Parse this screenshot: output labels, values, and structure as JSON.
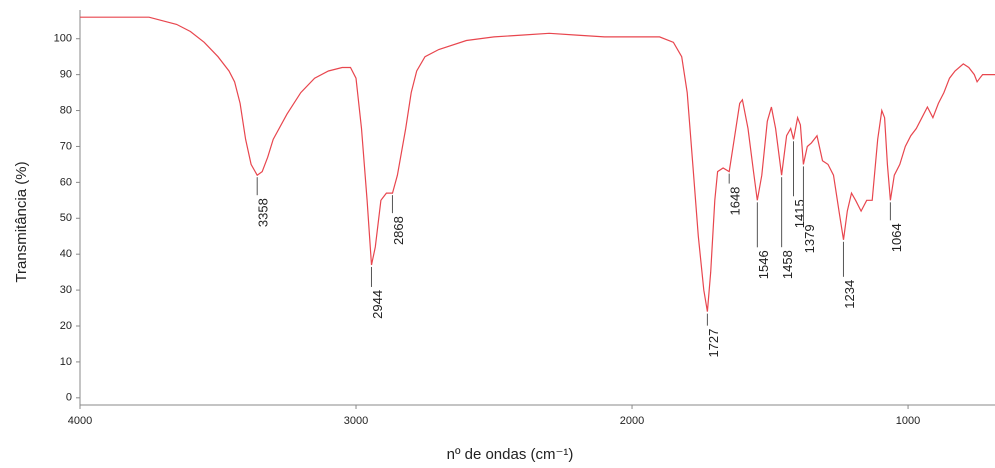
{
  "chart_data": {
    "type": "line",
    "x_label": "nº de ondas (cm⁻¹)",
    "y_label": "Transmitância (%)",
    "color": "#e8464e",
    "xlim": [
      4000,
      685
    ],
    "ylim": [
      -2,
      108
    ],
    "xticks": [
      4000,
      3000,
      2000,
      1000
    ],
    "yticks": [
      0,
      10,
      20,
      30,
      40,
      50,
      60,
      70,
      80,
      90,
      100
    ],
    "x": [
      4000,
      3800,
      3750,
      3700,
      3650,
      3600,
      3550,
      3500,
      3460,
      3440,
      3420,
      3400,
      3380,
      3358,
      3340,
      3320,
      3300,
      3250,
      3200,
      3150,
      3100,
      3050,
      3020,
      3000,
      2980,
      2960,
      2944,
      2930,
      2910,
      2890,
      2868,
      2850,
      2820,
      2800,
      2780,
      2750,
      2700,
      2600,
      2500,
      2400,
      2300,
      2200,
      2100,
      2000,
      1900,
      1850,
      1820,
      1800,
      1780,
      1760,
      1740,
      1727,
      1715,
      1700,
      1690,
      1670,
      1648,
      1630,
      1610,
      1600,
      1580,
      1560,
      1546,
      1530,
      1510,
      1495,
      1480,
      1458,
      1440,
      1425,
      1415,
      1400,
      1390,
      1379,
      1365,
      1350,
      1330,
      1310,
      1290,
      1270,
      1250,
      1234,
      1220,
      1205,
      1190,
      1170,
      1150,
      1130,
      1110,
      1095,
      1085,
      1075,
      1064,
      1050,
      1030,
      1010,
      990,
      970,
      950,
      930,
      910,
      890,
      870,
      850,
      830,
      800,
      780,
      760,
      750,
      740,
      730,
      700,
      685
    ],
    "values": [
      106,
      106,
      106,
      105,
      104,
      102,
      99,
      95,
      91,
      88,
      82,
      72,
      65,
      62,
      63,
      67,
      72,
      79,
      85,
      89,
      91,
      92,
      92,
      89,
      75,
      55,
      37,
      42,
      55,
      57,
      57,
      62,
      75,
      85,
      91,
      95,
      97,
      99.5,
      100.5,
      101,
      101.5,
      101,
      100.5,
      100.5,
      100.5,
      99,
      95,
      85,
      65,
      45,
      30,
      24,
      35,
      55,
      63,
      64,
      63,
      72,
      82,
      83,
      75,
      63,
      55,
      62,
      77,
      81,
      75,
      62,
      73,
      75,
      72,
      78,
      76,
      65,
      70,
      71,
      73,
      66,
      65,
      62,
      52,
      44,
      52,
      57,
      55,
      52,
      55,
      55,
      72,
      80,
      78,
      65,
      55,
      62,
      65,
      70,
      73,
      75,
      78,
      81,
      78,
      82,
      85,
      89,
      91,
      93,
      92,
      90,
      88,
      89,
      90,
      90,
      90
    ],
    "peaks": [
      3358,
      2944,
      2868,
      1727,
      1648,
      1546,
      1458,
      1415,
      1379,
      1234,
      1064
    ]
  }
}
